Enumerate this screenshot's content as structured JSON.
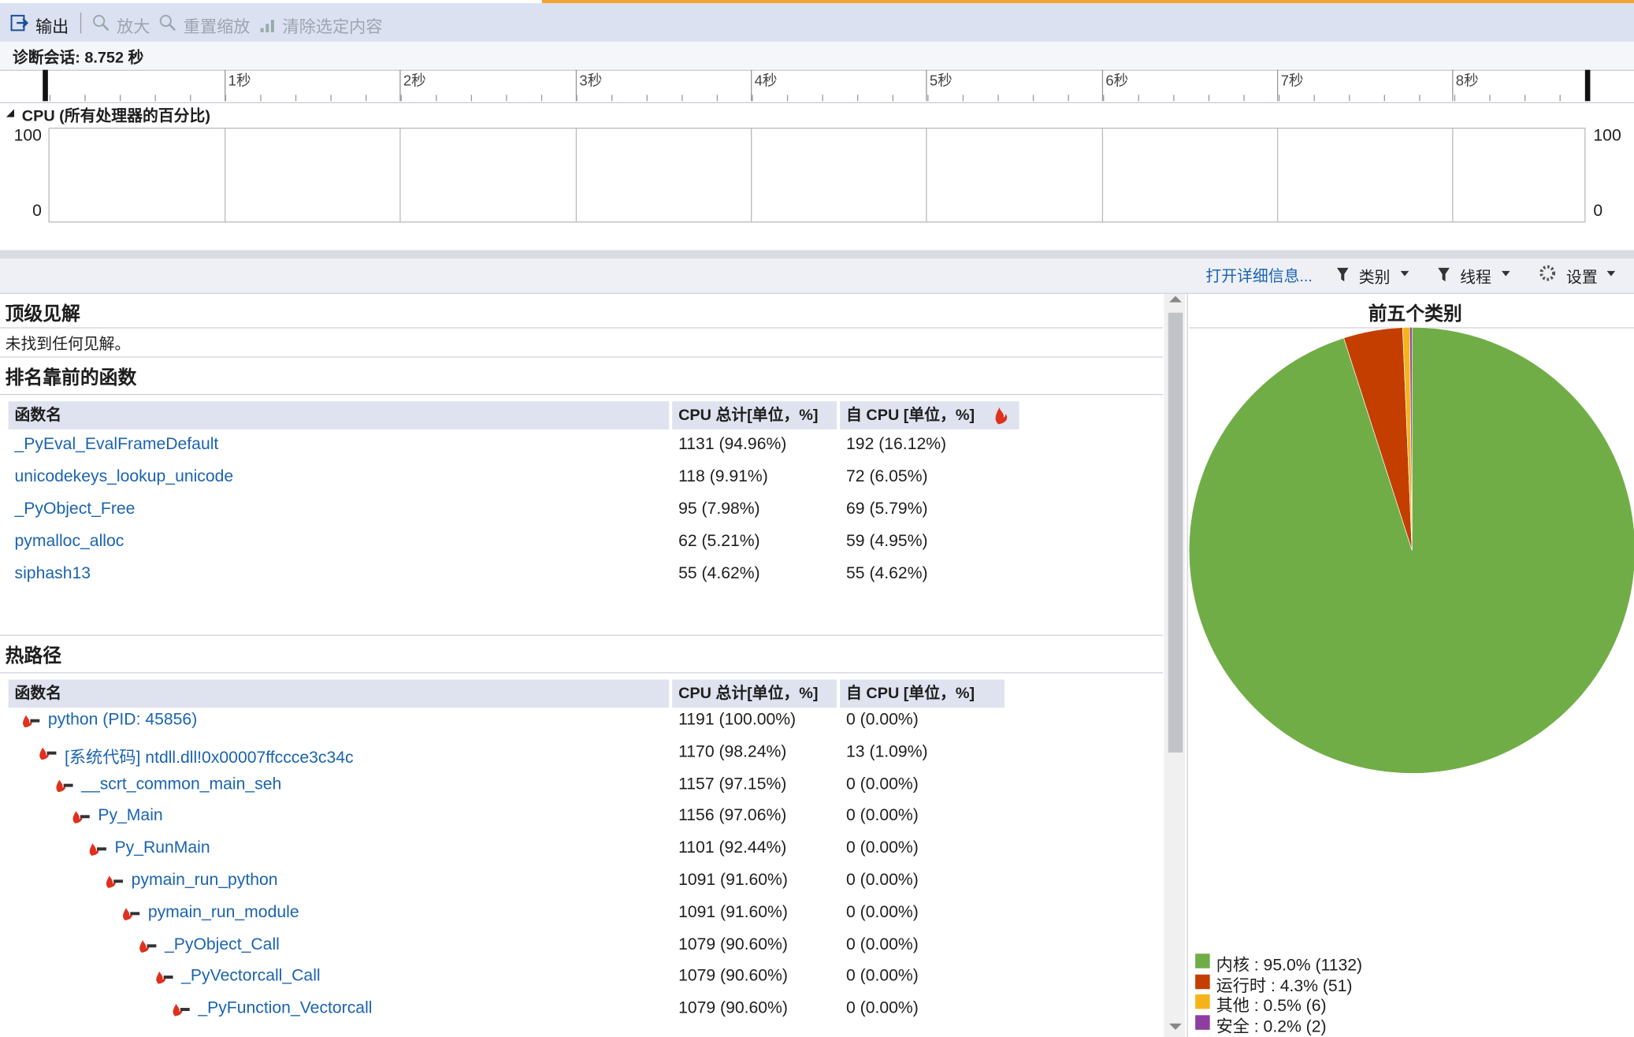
{
  "toolbar": {
    "items": [
      "输出",
      "放大",
      "重置缩放",
      "清除选定内容"
    ]
  },
  "session": "诊断会话: 8.752 秒",
  "timeline": {
    "ticks": [
      "1秒",
      "2秒",
      "3秒",
      "4秒",
      "5秒",
      "6秒",
      "7秒",
      "8秒"
    ]
  },
  "cpu_graph": {
    "title": "CPU (所有处理器的百分比)",
    "ylim": [
      0,
      100
    ],
    "yticks": [
      0,
      100
    ]
  },
  "details_bar": {
    "open": "打开详细信息...",
    "filters": [
      "类别",
      "线程"
    ],
    "settings": "设置"
  },
  "insights": {
    "title": "顶级见解",
    "message": "未找到任何见解。"
  },
  "top_functions": {
    "title": "排名靠前的函数",
    "columns": [
      "函数名",
      "CPU 总计[单位，%]",
      "自 CPU [单位，%]"
    ],
    "rows": [
      [
        "_PyEval_EvalFrameDefault",
        "1131 (94.96%)",
        "192 (16.12%)"
      ],
      [
        "unicodekeys_lookup_unicode",
        "118 (9.91%)",
        "72 (6.05%)"
      ],
      [
        "_PyObject_Free",
        "95 (7.98%)",
        "69 (5.79%)"
      ],
      [
        "pymalloc_alloc",
        "62 (5.21%)",
        "59 (4.95%)"
      ],
      [
        "siphash13",
        "55 (4.62%)",
        "55 (4.62%)"
      ]
    ]
  },
  "hot_path": {
    "title": "热路径",
    "columns": [
      "函数名",
      "CPU 总计[单位，%]",
      "自 CPU [单位，%]"
    ],
    "rows": [
      [
        "python (PID: 45856)",
        "1191 (100.00%)",
        "0 (0.00%)"
      ],
      [
        "[系统代码] ntdll.dll!0x00007ffccce3c34c",
        "1170 (98.24%)",
        "13 (1.09%)"
      ],
      [
        "__scrt_common_main_seh",
        "1157 (97.15%)",
        "0 (0.00%)"
      ],
      [
        "Py_Main",
        "1156 (97.06%)",
        "0 (0.00%)"
      ],
      [
        "Py_RunMain",
        "1101 (92.44%)",
        "0 (0.00%)"
      ],
      [
        "pymain_run_python",
        "1091 (91.60%)",
        "0 (0.00%)"
      ],
      [
        "pymain_run_module",
        "1091 (91.60%)",
        "0 (0.00%)"
      ],
      [
        "_PyObject_Call",
        "1079 (90.60%)",
        "0 (0.00%)"
      ],
      [
        "_PyVectorcall_Call",
        "1079 (90.60%)",
        "0 (0.00%)"
      ],
      [
        "_PyFunction_Vectorcall",
        "1079 (90.60%)",
        "0 (0.00%)"
      ]
    ]
  },
  "categories_chart": {
    "type": "pie",
    "title": "前五个类别",
    "labels": [
      "内核 : 95.0% (1132)",
      "运行时 : 4.3% (51)",
      "其他 : 0.5% (6)",
      "安全 : 0.2% (2)"
    ],
    "values": [
      1132,
      51,
      6,
      2
    ],
    "colors": [
      "#70ad47",
      "#c43e00",
      "#f5b41b",
      "#8e3e9e"
    ]
  }
}
